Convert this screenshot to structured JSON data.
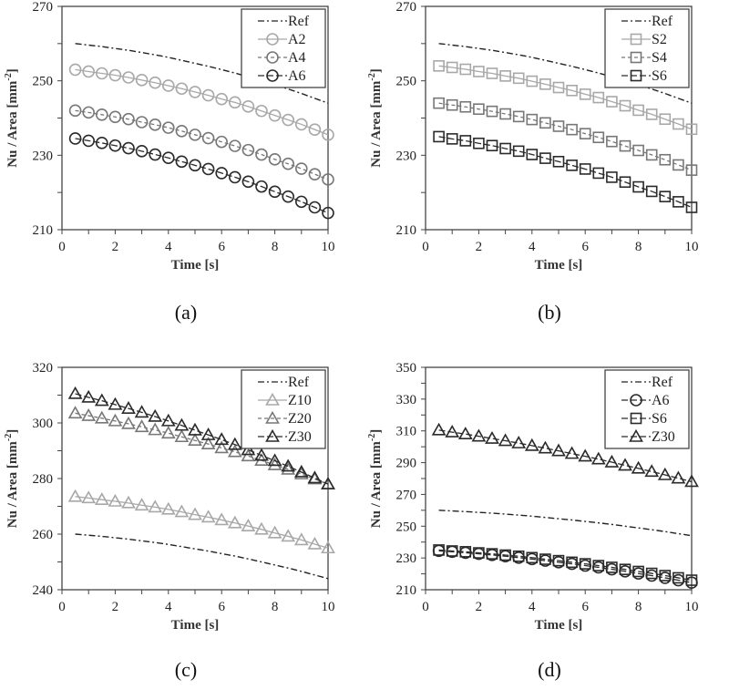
{
  "chart_data": [
    {
      "type": "line",
      "caption": "(a)",
      "xlabel": "Time [s]",
      "ylabel": "Nu / Area [mm",
      "ylabel_sup": "-2",
      "ylabel_end": "]",
      "xlim": [
        0,
        10
      ],
      "ylim": [
        210,
        270
      ],
      "xticks": [
        0,
        2,
        4,
        6,
        8,
        10
      ],
      "yticks": [
        210,
        230,
        250,
        270
      ],
      "legend": "top-right",
      "x": [
        0.5,
        1,
        1.5,
        2,
        2.5,
        3,
        3.5,
        4,
        4.5,
        5,
        5.5,
        6,
        6.5,
        7,
        7.5,
        8,
        8.5,
        9,
        9.5,
        10
      ],
      "series": [
        {
          "name": "Ref",
          "marker": "none",
          "color": "#222222",
          "dash": "dashdot",
          "values": [
            260.0,
            259.6,
            259.2,
            258.7,
            258.2,
            257.6,
            257.0,
            256.3,
            255.5,
            254.7,
            253.9,
            253.0,
            252.1,
            251.1,
            250.0,
            248.9,
            247.8,
            246.6,
            245.3,
            244.0
          ]
        },
        {
          "name": "A2",
          "marker": "circle",
          "color": "#a8a8a8",
          "dash": "solid",
          "values": [
            253.0,
            252.5,
            252.0,
            251.5,
            250.9,
            250.2,
            249.5,
            248.7,
            247.9,
            247.0,
            246.1,
            245.1,
            244.2,
            243.1,
            241.9,
            240.7,
            239.5,
            238.3,
            236.9,
            235.5
          ]
        },
        {
          "name": "A4",
          "marker": "circle",
          "color": "#777777",
          "dash": "dashed",
          "values": [
            242.0,
            241.5,
            240.9,
            240.3,
            239.7,
            238.9,
            238.2,
            237.4,
            236.5,
            235.5,
            234.6,
            233.6,
            232.5,
            231.4,
            230.2,
            228.9,
            227.7,
            226.4,
            224.9,
            223.5
          ]
        },
        {
          "name": "A6",
          "marker": "circle",
          "color": "#2a2a2a",
          "dash": "longdash",
          "values": [
            234.5,
            233.9,
            233.3,
            232.6,
            231.9,
            231.1,
            230.2,
            229.3,
            228.3,
            227.3,
            226.3,
            225.2,
            224.1,
            222.9,
            221.6,
            220.2,
            218.9,
            217.5,
            216.0,
            214.5
          ]
        }
      ]
    },
    {
      "type": "line",
      "caption": "(b)",
      "xlabel": "Time [s]",
      "ylabel": "Nu / Area [mm",
      "ylabel_sup": "-2",
      "ylabel_end": "]",
      "xlim": [
        0,
        10
      ],
      "ylim": [
        210,
        270
      ],
      "xticks": [
        0,
        2,
        4,
        6,
        8,
        10
      ],
      "yticks": [
        210,
        230,
        250,
        270
      ],
      "legend": "top-right",
      "x": [
        0.5,
        1,
        1.5,
        2,
        2.5,
        3,
        3.5,
        4,
        4.5,
        5,
        5.5,
        6,
        6.5,
        7,
        7.5,
        8,
        8.5,
        9,
        9.5,
        10
      ],
      "series": [
        {
          "name": "Ref",
          "marker": "none",
          "color": "#222222",
          "dash": "dashdot",
          "values": [
            260.0,
            259.6,
            259.2,
            258.7,
            258.2,
            257.6,
            257.0,
            256.3,
            255.5,
            254.7,
            253.9,
            253.0,
            252.1,
            251.1,
            250.0,
            248.9,
            247.8,
            246.6,
            245.3,
            244.0
          ]
        },
        {
          "name": "S2",
          "marker": "square",
          "color": "#a8a8a8",
          "dash": "solid",
          "values": [
            254.0,
            253.6,
            253.1,
            252.5,
            252.0,
            251.3,
            250.7,
            249.9,
            249.1,
            248.2,
            247.4,
            246.4,
            245.5,
            244.4,
            243.3,
            242.1,
            241.0,
            239.7,
            238.4,
            237.0
          ]
        },
        {
          "name": "S4",
          "marker": "square",
          "color": "#777777",
          "dash": "dashed",
          "values": [
            244.0,
            243.5,
            243.0,
            242.4,
            241.8,
            241.1,
            240.4,
            239.6,
            238.7,
            237.8,
            236.9,
            235.8,
            234.8,
            233.7,
            232.5,
            231.3,
            230.1,
            228.8,
            227.4,
            226.0
          ]
        },
        {
          "name": "S6",
          "marker": "square",
          "color": "#2a2a2a",
          "dash": "longdash",
          "values": [
            235.0,
            234.4,
            233.9,
            233.2,
            232.6,
            231.8,
            231.1,
            230.2,
            229.2,
            228.3,
            227.3,
            226.3,
            225.2,
            224.1,
            222.8,
            221.5,
            220.3,
            218.9,
            217.5,
            216.0
          ]
        }
      ]
    },
    {
      "type": "line",
      "caption": "(c)",
      "xlabel": "Time [s]",
      "ylabel": "Nu / Area [mm",
      "ylabel_sup": "-2",
      "ylabel_end": "]",
      "xlim": [
        0,
        10
      ],
      "ylim": [
        240,
        320
      ],
      "xticks": [
        0,
        2,
        4,
        6,
        8,
        10
      ],
      "yticks": [
        240,
        260,
        280,
        300,
        320
      ],
      "legend": "top-right",
      "x": [
        0.5,
        1,
        1.5,
        2,
        2.5,
        3,
        3.5,
        4,
        4.5,
        5,
        5.5,
        6,
        6.5,
        7,
        7.5,
        8,
        8.5,
        9,
        9.5,
        10
      ],
      "series": [
        {
          "name": "Ref",
          "marker": "none",
          "color": "#222222",
          "dash": "dashdot",
          "values": [
            260.0,
            259.6,
            259.2,
            258.7,
            258.2,
            257.6,
            257.0,
            256.3,
            255.5,
            254.7,
            253.9,
            253.0,
            252.1,
            251.1,
            250.0,
            248.9,
            247.8,
            246.6,
            245.3,
            244.0
          ]
        },
        {
          "name": "Z10",
          "marker": "triangle",
          "color": "#a8a8a8",
          "dash": "solid",
          "values": [
            273.5,
            273.0,
            272.4,
            271.8,
            271.2,
            270.4,
            269.7,
            268.9,
            268.0,
            267.0,
            266.1,
            265.1,
            264.0,
            262.9,
            261.7,
            260.4,
            259.2,
            257.9,
            256.4,
            255.0
          ]
        },
        {
          "name": "Z20",
          "marker": "triangle",
          "color": "#777777",
          "dash": "dashed",
          "values": [
            303.5,
            302.6,
            301.7,
            300.7,
            299.7,
            298.6,
            297.5,
            296.3,
            295.0,
            293.7,
            292.4,
            291.0,
            289.6,
            288.1,
            286.5,
            284.9,
            283.3,
            281.6,
            279.8,
            278.0
          ]
        },
        {
          "name": "Z30",
          "marker": "triangle",
          "color": "#2a2a2a",
          "dash": "longdash",
          "values": [
            310.5,
            309.2,
            308.0,
            306.6,
            305.2,
            303.8,
            302.3,
            300.7,
            299.1,
            297.4,
            295.7,
            294.0,
            292.2,
            290.3,
            288.3,
            286.4,
            284.4,
            282.3,
            280.2,
            278.0
          ]
        }
      ]
    },
    {
      "type": "line",
      "caption": "(d)",
      "xlabel": "Time [s]",
      "ylabel": "Nu / Area [mm",
      "ylabel_sup": "-2",
      "ylabel_end": "]",
      "xlim": [
        0,
        10
      ],
      "ylim": [
        210,
        350
      ],
      "xticks": [
        0,
        2,
        4,
        6,
        8,
        10
      ],
      "yticks": [
        210,
        230,
        250,
        270,
        290,
        310,
        330,
        350
      ],
      "legend": "top-right",
      "x": [
        0.5,
        1,
        1.5,
        2,
        2.5,
        3,
        3.5,
        4,
        4.5,
        5,
        5.5,
        6,
        6.5,
        7,
        7.5,
        8,
        8.5,
        9,
        9.5,
        10
      ],
      "series": [
        {
          "name": "Ref",
          "marker": "none",
          "color": "#222222",
          "dash": "dashdot",
          "values": [
            260.0,
            259.6,
            259.2,
            258.7,
            258.2,
            257.6,
            257.0,
            256.3,
            255.5,
            254.7,
            253.9,
            253.0,
            252.1,
            251.1,
            250.0,
            248.9,
            247.8,
            246.6,
            245.3,
            244.0
          ]
        },
        {
          "name": "A6",
          "marker": "circle",
          "color": "#2a2a2a",
          "dash": "longdash",
          "values": [
            234.5,
            233.9,
            233.3,
            232.6,
            231.9,
            231.1,
            230.2,
            229.3,
            228.3,
            227.3,
            226.3,
            225.2,
            224.1,
            222.9,
            221.6,
            220.2,
            218.9,
            217.5,
            216.0,
            214.5
          ]
        },
        {
          "name": "S6",
          "marker": "square",
          "color": "#2a2a2a",
          "dash": "longdash",
          "values": [
            235.0,
            234.4,
            233.9,
            233.2,
            232.6,
            231.8,
            231.1,
            230.2,
            229.2,
            228.3,
            227.3,
            226.3,
            225.2,
            224.1,
            222.8,
            221.5,
            220.3,
            218.9,
            217.5,
            216.0
          ]
        },
        {
          "name": "Z30",
          "marker": "triangle",
          "color": "#2a2a2a",
          "dash": "longdash",
          "values": [
            310.5,
            309.2,
            308.0,
            306.6,
            305.2,
            303.8,
            302.3,
            300.7,
            299.1,
            297.4,
            295.7,
            294.0,
            292.2,
            290.3,
            288.3,
            286.4,
            284.4,
            282.3,
            280.2,
            278.0
          ]
        }
      ]
    }
  ]
}
